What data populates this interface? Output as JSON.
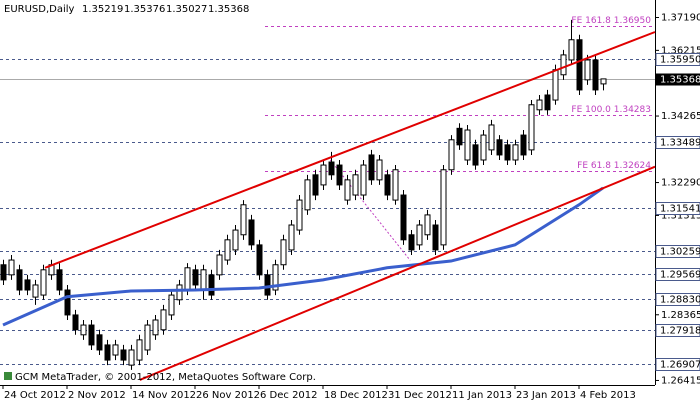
{
  "chart_data": {
    "type": "candlestick",
    "symbol": "EURUSD,Daily",
    "footer": "GCM MetaTrader, © 2001-2012, MetaQuotes Software Corp.",
    "categories": [
      "24 Oct 2012",
      null,
      null,
      null,
      null,
      null,
      null,
      null,
      "2 Nov 2012",
      null,
      null,
      null,
      null,
      null,
      null,
      null,
      "14 Nov 2012",
      null,
      null,
      null,
      null,
      null,
      null,
      null,
      "26 Nov 2012",
      null,
      null,
      null,
      null,
      null,
      null,
      null,
      "6 Dec 2012",
      null,
      null,
      null,
      null,
      null,
      null,
      null,
      "18 Dec 2012",
      null,
      null,
      null,
      null,
      null,
      null,
      null,
      "31 Dec 2012",
      null,
      null,
      null,
      null,
      null,
      null,
      null,
      "11 Jan 2013",
      null,
      null,
      null,
      null,
      null,
      null,
      null,
      "23 Jan 2013",
      null,
      null,
      null,
      null,
      null,
      null,
      null,
      "4 Feb 2013",
      null,
      null,
      null
    ],
    "ohlc": [
      [
        1.2985,
        1.3,
        1.2925,
        1.294
      ],
      [
        1.2955,
        1.3014,
        1.294,
        1.2999
      ],
      [
        1.297,
        1.2985,
        1.2895,
        1.291
      ],
      [
        1.294,
        1.2955,
        1.2895,
        1.291
      ],
      [
        1.2889,
        1.294,
        1.2866,
        1.2925
      ],
      [
        1.2895,
        1.2985,
        1.2881,
        1.297
      ],
      [
        1.2955,
        1.3,
        1.294,
        1.2985
      ],
      [
        1.297,
        1.299,
        1.2895,
        1.291
      ],
      [
        1.291,
        1.2925,
        1.2821,
        1.2836
      ],
      [
        1.2836,
        1.2851,
        1.2777,
        1.2792
      ],
      [
        1.2777,
        1.2821,
        1.2762,
        1.2806
      ],
      [
        1.2806,
        1.2821,
        1.2732,
        1.2747
      ],
      [
        1.2777,
        1.2792,
        1.2717,
        1.2732
      ],
      [
        1.2747,
        1.2762,
        1.2687,
        1.2702
      ],
      [
        1.2717,
        1.2762,
        1.2702,
        1.2747
      ],
      [
        1.2732,
        1.2747,
        1.2687,
        1.2702
      ],
      [
        1.2687,
        1.2747,
        1.2673,
        1.2732
      ],
      [
        1.2702,
        1.2777,
        1.2687,
        1.2762
      ],
      [
        1.2732,
        1.2821,
        1.2717,
        1.2806
      ],
      [
        1.2777,
        1.2836,
        1.2762,
        1.2821
      ],
      [
        1.2792,
        1.2866,
        1.2777,
        1.2851
      ],
      [
        1.2836,
        1.291,
        1.2821,
        1.2895
      ],
      [
        1.2881,
        1.294,
        1.2866,
        1.2925
      ],
      [
        1.291,
        1.299,
        1.2895,
        1.2976
      ],
      [
        1.297,
        1.2985,
        1.291,
        1.2925
      ],
      [
        1.291,
        1.2985,
        1.2881,
        1.297
      ],
      [
        1.2955,
        1.297,
        1.2881,
        1.2895
      ],
      [
        1.2955,
        1.3029,
        1.294,
        1.3014
      ],
      [
        1.2999,
        1.3074,
        1.2985,
        1.3059
      ],
      [
        1.3029,
        1.3103,
        1.3014,
        1.3088
      ],
      [
        1.3074,
        1.3177,
        1.3059,
        1.3163
      ],
      [
        1.3118,
        1.3133,
        1.3029,
        1.3044
      ],
      [
        1.3044,
        1.3059,
        1.294,
        1.2955
      ],
      [
        1.2955,
        1.297,
        1.2881,
        1.2895
      ],
      [
        1.291,
        1.3,
        1.2895,
        1.2985
      ],
      [
        1.2985,
        1.3074,
        1.297,
        1.3059
      ],
      [
        1.3029,
        1.3118,
        1.3014,
        1.3103
      ],
      [
        1.3088,
        1.3192,
        1.3074,
        1.3177
      ],
      [
        1.3148,
        1.3252,
        1.3133,
        1.3237
      ],
      [
        1.3252,
        1.3267,
        1.3177,
        1.3192
      ],
      [
        1.3222,
        1.3296,
        1.3207,
        1.3281
      ],
      [
        1.329,
        1.332,
        1.3237,
        1.3252
      ],
      [
        1.3281,
        1.3296,
        1.3207,
        1.3222
      ],
      [
        1.3177,
        1.3252,
        1.3163,
        1.3237
      ],
      [
        1.3192,
        1.3267,
        1.3177,
        1.3252
      ],
      [
        1.3192,
        1.3296,
        1.3177,
        1.3281
      ],
      [
        1.3311,
        1.3326,
        1.3222,
        1.3237
      ],
      [
        1.3237,
        1.3311,
        1.3222,
        1.3296
      ],
      [
        1.3252,
        1.3267,
        1.3177,
        1.3192
      ],
      [
        1.3177,
        1.3281,
        1.3163,
        1.3267
      ],
      [
        1.3192,
        1.3207,
        1.3044,
        1.3059
      ],
      [
        1.3074,
        1.3088,
        1.3014,
        1.3029
      ],
      [
        1.3044,
        1.3118,
        1.3029,
        1.3103
      ],
      [
        1.3074,
        1.3148,
        1.3059,
        1.3133
      ],
      [
        1.3103,
        1.3118,
        1.3014,
        1.3029
      ],
      [
        1.3044,
        1.3281,
        1.3029,
        1.3267
      ],
      [
        1.3267,
        1.337,
        1.3252,
        1.3356
      ],
      [
        1.339,
        1.3405,
        1.3326,
        1.3341
      ],
      [
        1.3296,
        1.34,
        1.3281,
        1.3385
      ],
      [
        1.3341,
        1.3356,
        1.3267,
        1.3281
      ],
      [
        1.3296,
        1.3385,
        1.3281,
        1.337
      ],
      [
        1.3326,
        1.3415,
        1.3311,
        1.34
      ],
      [
        1.3356,
        1.337,
        1.3296,
        1.3311
      ],
      [
        1.3341,
        1.3356,
        1.3281,
        1.3296
      ],
      [
        1.3296,
        1.3356,
        1.3281,
        1.3341
      ],
      [
        1.337,
        1.3385,
        1.3296,
        1.3311
      ],
      [
        1.3326,
        1.3474,
        1.3311,
        1.346
      ],
      [
        1.3445,
        1.3489,
        1.343,
        1.3474
      ],
      [
        1.3489,
        1.3504,
        1.343,
        1.3445
      ],
      [
        1.3474,
        1.3579,
        1.346,
        1.3564
      ],
      [
        1.3549,
        1.3623,
        1.3534,
        1.3608
      ],
      [
        1.3593,
        1.3712,
        1.3579,
        1.3653
      ],
      [
        1.3653,
        1.3668,
        1.3489,
        1.3504
      ],
      [
        1.3534,
        1.3608,
        1.3519,
        1.3593
      ],
      [
        1.3593,
        1.3608,
        1.3489,
        1.3504
      ],
      [
        1.35219,
        1.35376,
        1.35027,
        1.35368
      ]
    ],
    "bull_color": "#ffffff",
    "bear_color": "#000000",
    "ma": {
      "color": "#3a5fcd",
      "x": [
        0,
        8,
        16,
        24,
        32,
        40,
        48,
        56,
        64,
        72,
        75
      ],
      "values": [
        1.2806,
        1.289,
        1.2907,
        1.291,
        1.2916,
        1.294,
        1.2976,
        1.2996,
        1.3044,
        1.3163,
        1.3213
      ]
    },
    "trendlines": [
      {
        "color": "#e00000",
        "x": [
          5.25,
          81.5
        ],
        "values": [
          1.2976,
          1.3676
        ]
      },
      {
        "color": "#e00000",
        "x": [
          17.1,
          81.5
        ],
        "values": [
          1.2643,
          1.3276
        ]
      }
    ],
    "fib_line": {
      "color": "#c040c0",
      "x": [
        40.9,
        50.9
      ],
      "values": [
        1.3296,
        1.2998
      ]
    },
    "fe_levels": [
      {
        "value": 1.3695,
        "label": "FE 161.8 1.36950"
      },
      {
        "value": 1.34283,
        "label": "FE 100.0 1.34283"
      },
      {
        "value": 1.32624,
        "label": "FE 61.8 1.32624"
      }
    ],
    "levels": [
      {
        "value": 1.3595,
        "label": "1.35950"
      },
      {
        "value": 1.33489,
        "label": "1.33489"
      },
      {
        "value": 1.31541,
        "label": "1.31541"
      },
      {
        "value": 1.30259,
        "label": "1.30259"
      },
      {
        "value": 1.29569,
        "label": "1.29569"
      },
      {
        "value": 1.2883,
        "label": "1.28830"
      },
      {
        "value": 1.27918,
        "label": "1.27918"
      },
      {
        "value": 1.26907,
        "label": "1.26907"
      }
    ],
    "ylim": [
      1.2628,
      1.3771
    ],
    "yticks": [
      {
        "value": 1.3719,
        "label": "1.37190"
      },
      1.36215,
      1.34265,
      {
        "value": 1.3229,
        "label": "1.32290"
      },
      1.31315,
      1.28365,
      1.26415
    ]
  }
}
